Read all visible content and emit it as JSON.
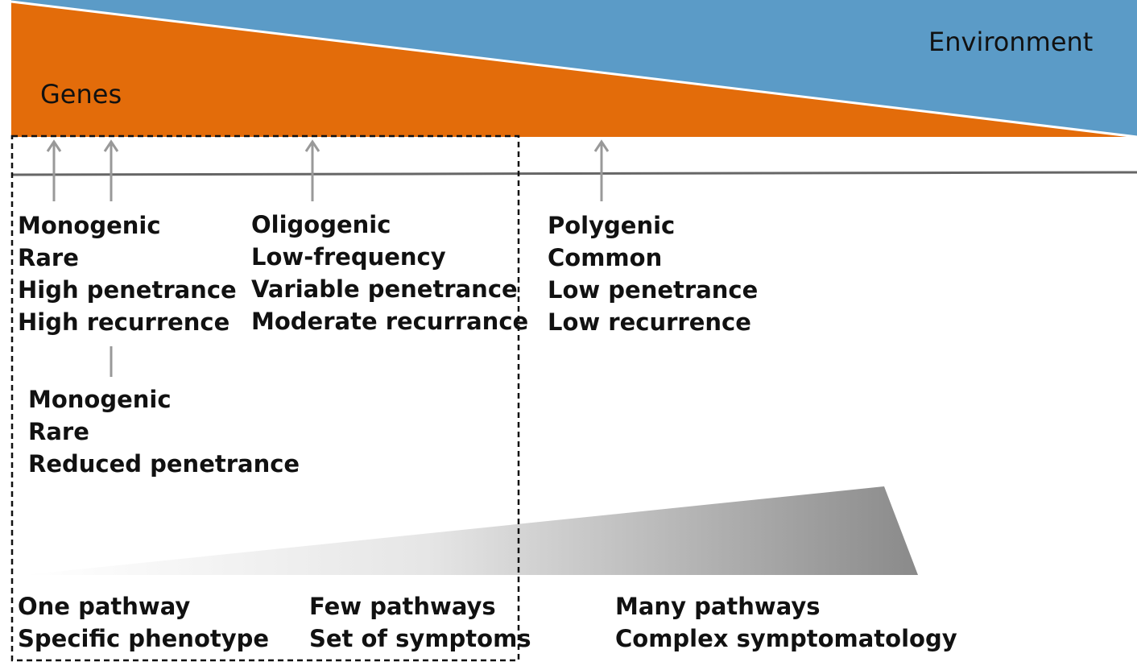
{
  "colors": {
    "genes": "#E36C0A",
    "environment": "#5B9BC7",
    "axis": "#666666",
    "arrow": "#999999",
    "box_border": "#111111",
    "wedge_light": "#ffffff",
    "wedge_dark": "#8a8a8a"
  },
  "top_band": {
    "genes_label": "Genes",
    "environment_label": "Environment"
  },
  "groups": {
    "monogenic_high": [
      "Monogenic",
      "Rare",
      "High penetrance",
      "High recurrence"
    ],
    "oligogenic": [
      "Oligogenic",
      "Low-frequency",
      "Variable penetrance",
      "Moderate recurrance"
    ],
    "polygenic": [
      "Polygenic",
      "Common",
      "Low penetrance",
      "Low recurrence"
    ],
    "monogenic_reduced": [
      "Monogenic",
      "Rare",
      "Reduced penetrance"
    ]
  },
  "bottom": {
    "one": [
      "One pathway",
      "Specific phenotype"
    ],
    "few": [
      "Few pathways",
      "Set of symptoms"
    ],
    "many": [
      "Many pathways",
      "Complex symptomatology"
    ]
  }
}
